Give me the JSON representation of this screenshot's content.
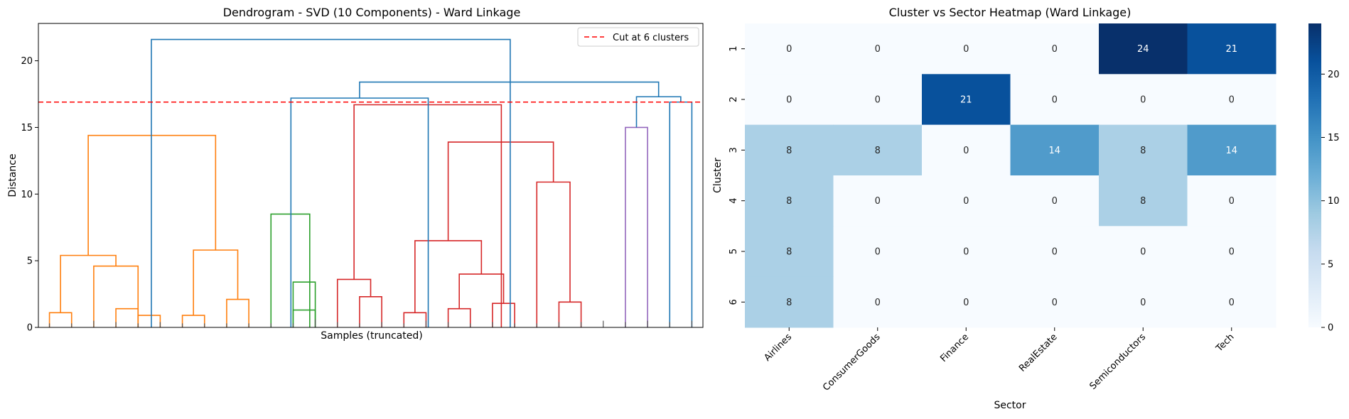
{
  "chart_data": [
    {
      "type": "dendrogram",
      "title": "Dendrogram - SVD (10 Components) - Ward Linkage",
      "xlabel": "Samples (truncated)",
      "ylabel": "Distance",
      "ylim": [
        0,
        22.8
      ],
      "yticks": [
        0,
        5,
        10,
        15,
        20
      ],
      "grid": false,
      "legend": {
        "position": "top-right",
        "entries": [
          {
            "label": "Cut at 6 clusters",
            "color": "#ff0000",
            "style": "dashed"
          }
        ]
      },
      "cut_height": 16.9,
      "leaves": [
        {
          "x": 0,
          "h": 0.3
        },
        {
          "x": 1,
          "h": 0.3
        },
        {
          "x": 2,
          "h": 0.5
        },
        {
          "x": 3,
          "h": 0.4
        },
        {
          "x": 4,
          "h": 0.3
        },
        {
          "x": 5,
          "h": 0.4
        },
        {
          "x": 6,
          "h": 0.3
        },
        {
          "x": 7,
          "h": 0.3
        },
        {
          "x": 8,
          "h": 0.3
        },
        {
          "x": 9,
          "h": 0.3
        },
        {
          "x": 10,
          "h": 0.3
        },
        {
          "x": 11,
          "h": 0.3
        },
        {
          "x": 12,
          "h": 0.6
        },
        {
          "x": 13,
          "h": 0.4
        },
        {
          "x": 14,
          "h": 0.3
        },
        {
          "x": 15,
          "h": 0.4
        },
        {
          "x": 16,
          "h": 0.3
        },
        {
          "x": 17,
          "h": 0.5
        },
        {
          "x": 18,
          "h": 0.4
        },
        {
          "x": 19,
          "h": 0.3
        },
        {
          "x": 20,
          "h": 0.4
        },
        {
          "x": 21,
          "h": 0.3
        },
        {
          "x": 22,
          "h": 0.3
        },
        {
          "x": 23,
          "h": 0.4
        },
        {
          "x": 24,
          "h": 0.4
        },
        {
          "x": 25,
          "h": 0.5
        },
        {
          "x": 26,
          "h": 0.4
        },
        {
          "x": 27,
          "h": 0.5
        },
        {
          "x": 28,
          "h": 0.4
        },
        {
          "x": 29,
          "h": 0.5
        }
      ],
      "links": [
        {
          "a": 0,
          "b": 1,
          "h": 1.1,
          "color": "#ff7f0e"
        },
        {
          "a": 3,
          "b": 4,
          "h": 1.4,
          "color": "#ff7f0e"
        },
        {
          "a": 4,
          "b": 5,
          "h": 0.9,
          "color": "#ff7f0e"
        },
        {
          "a": 2,
          "b": 4,
          "h": 4.6,
          "color": "#ff7f0e"
        },
        {
          "a": 0.5,
          "b": 3,
          "h": 5.4,
          "color": "#ff7f0e"
        },
        {
          "a": 6,
          "b": 7,
          "h": 0.9,
          "color": "#ff7f0e"
        },
        {
          "a": 8,
          "b": 9,
          "h": 2.1,
          "color": "#ff7f0e"
        },
        {
          "a": 6.5,
          "b": 8.5,
          "h": 5.8,
          "color": "#ff7f0e"
        },
        {
          "a": 1.75,
          "b": 7.5,
          "h": 14.4,
          "color": "#ff7f0e"
        },
        {
          "a": 11,
          "b": 12,
          "h": 1.3,
          "color": "#2ca02c"
        },
        {
          "a": 11,
          "b": 12,
          "h": 3.4,
          "color": "#2ca02c"
        },
        {
          "a": 10,
          "b": 11.75,
          "h": 8.5,
          "color": "#2ca02c"
        },
        {
          "a": 14,
          "b": 15,
          "h": 2.3,
          "color": "#d62728"
        },
        {
          "a": 13,
          "b": 14.5,
          "h": 3.6,
          "color": "#d62728"
        },
        {
          "a": 16,
          "b": 17,
          "h": 1.1,
          "color": "#d62728"
        },
        {
          "a": 18,
          "b": 19,
          "h": 1.4,
          "color": "#d62728"
        },
        {
          "a": 20,
          "b": 21,
          "h": 1.8,
          "color": "#d62728"
        },
        {
          "a": 18.5,
          "b": 20.5,
          "h": 4.0,
          "color": "#d62728"
        },
        {
          "a": 16.5,
          "b": 19.5,
          "h": 6.5,
          "color": "#d62728"
        },
        {
          "a": 23,
          "b": 24,
          "h": 1.9,
          "color": "#d62728"
        },
        {
          "a": 22,
          "b": 23.5,
          "h": 10.9,
          "color": "#d62728"
        },
        {
          "a": 18,
          "b": 22.75,
          "h": 13.9,
          "color": "#d62728"
        },
        {
          "a": 13.75,
          "b": 20.4,
          "h": 16.7,
          "color": "#d62728"
        },
        {
          "a": 26,
          "b": 27,
          "h": 15.0,
          "color": "#9467bd"
        },
        {
          "a": 10.9,
          "b": 17.1,
          "h": 17.2,
          "color": "#1f77b4"
        },
        {
          "a": 28,
          "b": 29,
          "h": 16.9,
          "color": "#1f77b4"
        },
        {
          "a": 26.5,
          "b": 28.5,
          "h": 17.3,
          "color": "#1f77b4"
        },
        {
          "a": 14,
          "b": 27.5,
          "h": 18.4,
          "color": "#1f77b4"
        },
        {
          "a": 4.6,
          "b": 20.8,
          "h": 21.6,
          "color": "#1f77b4"
        }
      ]
    },
    {
      "type": "heatmap",
      "title": "Cluster vs Sector Heatmap (Ward Linkage)",
      "xlabel": "Sector",
      "ylabel": "Cluster",
      "x": [
        "Airlines",
        "ConsumerGoods",
        "Finance",
        "RealEstate",
        "Semiconductors",
        "Tech"
      ],
      "y": [
        "1",
        "2",
        "3",
        "4",
        "5",
        "6"
      ],
      "values": [
        [
          0,
          0,
          0,
          0,
          24,
          21
        ],
        [
          0,
          0,
          21,
          0,
          0,
          0
        ],
        [
          8,
          8,
          0,
          14,
          8,
          14
        ],
        [
          8,
          0,
          0,
          0,
          8,
          0
        ],
        [
          8,
          0,
          0,
          0,
          0,
          0
        ],
        [
          8,
          0,
          0,
          0,
          0,
          0
        ]
      ],
      "colormap": "Blues",
      "vmin": 0,
      "vmax": 24,
      "colorbar_ticks": [
        0,
        5,
        10,
        15,
        20
      ]
    }
  ]
}
